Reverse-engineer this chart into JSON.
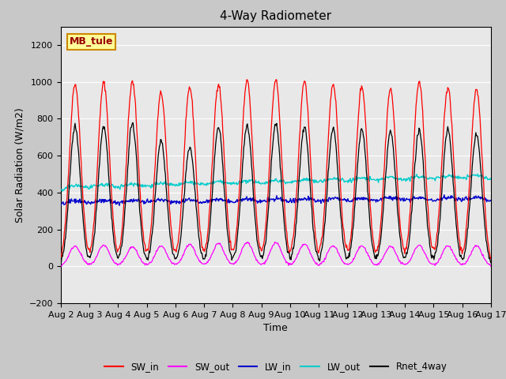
{
  "title": "4-Way Radiometer",
  "xlabel": "Time",
  "ylabel": "Solar Radiation (W/m2)",
  "ylim": [
    -200,
    1300
  ],
  "yticks": [
    -200,
    0,
    200,
    400,
    600,
    800,
    1000,
    1200
  ],
  "n_days": 15,
  "start_day": 2,
  "colors": {
    "SW_in": "#ff0000",
    "SW_out": "#ff00ff",
    "LW_in": "#0000cc",
    "LW_out": "#00cccc",
    "Rnet_4way": "#000000"
  },
  "annotation_text": "MB_tule",
  "bg_color": "#e8e8e8",
  "fig_bg": "#c8c8c8"
}
